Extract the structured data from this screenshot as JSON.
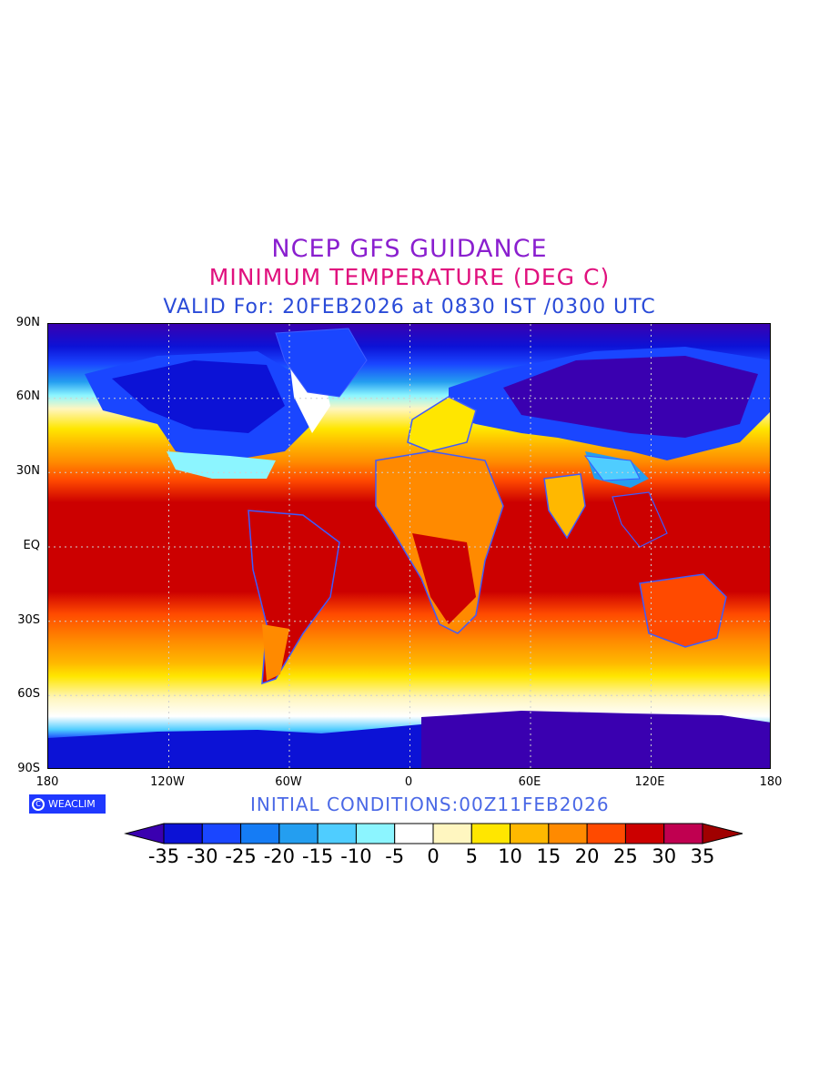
{
  "title": {
    "line1": "NCEP GFS GUIDANCE",
    "line2": "MINIMUM TEMPERATURE (DEG C)",
    "line3": "VALID For: 20FEB2026 at 0830 IST /0300 UTC"
  },
  "axes": {
    "lat_labels": [
      "90N",
      "60N",
      "30N",
      "EQ",
      "30S",
      "60S",
      "90S"
    ],
    "lon_labels": [
      "180",
      "120W",
      "60W",
      "0",
      "60E",
      "120E",
      "180"
    ]
  },
  "logo": {
    "text": "WEACLIM",
    "icon": "copyright-icon"
  },
  "initial_conditions": "INITIAL CONDITIONS:00Z11FEB2026",
  "colorbar": {
    "labels": [
      "-35",
      "-30",
      "-25",
      "-20",
      "-15",
      "-10",
      "-5",
      "0",
      "5",
      "10",
      "15",
      "20",
      "25",
      "30",
      "35"
    ],
    "colors": [
      "#3a00b0",
      "#0c12d6",
      "#1a46ff",
      "#157cf5",
      "#249ef0",
      "#4fcdff",
      "#8cf5ff",
      "#ffffff",
      "#fff6c0",
      "#ffe600",
      "#ffb800",
      "#ff8a00",
      "#ff4a00",
      "#cc0000",
      "#c00050",
      "#a00000"
    ]
  },
  "map_colors": {
    "ocean_deep_polar": "#3a00b0",
    "land_border": "#3d5bff",
    "grid_line": "#cccccc"
  }
}
